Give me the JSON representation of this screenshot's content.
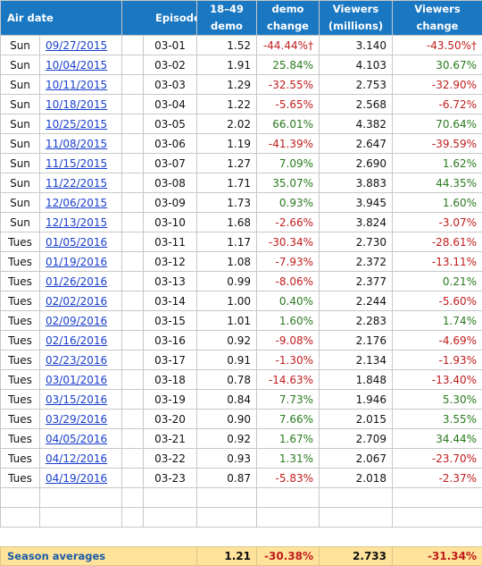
{
  "headers": {
    "air_date": "Air date",
    "episode": "Episode",
    "demo_line1": "18–49",
    "demo_line2": "demo",
    "demo_change_line1": "demo",
    "demo_change_line2": "change",
    "viewers_line1": "Viewers",
    "viewers_line2": "(millions)",
    "viewers_change_line1": "Viewers",
    "viewers_change_line2": "change"
  },
  "rows": [
    {
      "day": "Sun",
      "date": "09/27/2015",
      "episode": "03-01",
      "demo": "1.52",
      "demo_change": "-44.44%†",
      "viewers": "3.140",
      "viewers_change": "-43.50%†"
    },
    {
      "day": "Sun",
      "date": "10/04/2015",
      "episode": "03-02",
      "demo": "1.91",
      "demo_change": "25.84%",
      "viewers": "4.103",
      "viewers_change": "30.67%"
    },
    {
      "day": "Sun",
      "date": "10/11/2015",
      "episode": "03-03",
      "demo": "1.29",
      "demo_change": "-32.55%",
      "viewers": "2.753",
      "viewers_change": "-32.90%"
    },
    {
      "day": "Sun",
      "date": "10/18/2015",
      "episode": "03-04",
      "demo": "1.22",
      "demo_change": "-5.65%",
      "viewers": "2.568",
      "viewers_change": "-6.72%"
    },
    {
      "day": "Sun",
      "date": "10/25/2015",
      "episode": "03-05",
      "demo": "2.02",
      "demo_change": "66.01%",
      "viewers": "4.382",
      "viewers_change": "70.64%"
    },
    {
      "day": "Sun",
      "date": "11/08/2015",
      "episode": "03-06",
      "demo": "1.19",
      "demo_change": "-41.39%",
      "viewers": "2.647",
      "viewers_change": "-39.59%"
    },
    {
      "day": "Sun",
      "date": "11/15/2015",
      "episode": "03-07",
      "demo": "1.27",
      "demo_change": "7.09%",
      "viewers": "2.690",
      "viewers_change": "1.62%"
    },
    {
      "day": "Sun",
      "date": "11/22/2015",
      "episode": "03-08",
      "demo": "1.71",
      "demo_change": "35.07%",
      "viewers": "3.883",
      "viewers_change": "44.35%"
    },
    {
      "day": "Sun",
      "date": "12/06/2015",
      "episode": "03-09",
      "demo": "1.73",
      "demo_change": "0.93%",
      "viewers": "3.945",
      "viewers_change": "1.60%"
    },
    {
      "day": "Sun",
      "date": "12/13/2015",
      "episode": "03-10",
      "demo": "1.68",
      "demo_change": "-2.66%",
      "viewers": "3.824",
      "viewers_change": "-3.07%"
    },
    {
      "day": "Tues",
      "date": "01/05/2016",
      "episode": "03-11",
      "demo": "1.17",
      "demo_change": "-30.34%",
      "viewers": "2.730",
      "viewers_change": "-28.61%"
    },
    {
      "day": "Tues",
      "date": "01/19/2016",
      "episode": "03-12",
      "demo": "1.08",
      "demo_change": "-7.93%",
      "viewers": "2.372",
      "viewers_change": "-13.11%"
    },
    {
      "day": "Tues",
      "date": "01/26/2016",
      "episode": "03-13",
      "demo": "0.99",
      "demo_change": "-8.06%",
      "viewers": "2.377",
      "viewers_change": "0.21%"
    },
    {
      "day": "Tues",
      "date": "02/02/2016",
      "episode": "03-14",
      "demo": "1.00",
      "demo_change": "0.40%",
      "viewers": "2.244",
      "viewers_change": "-5.60%"
    },
    {
      "day": "Tues",
      "date": "02/09/2016",
      "episode": "03-15",
      "demo": "1.01",
      "demo_change": "1.60%",
      "viewers": "2.283",
      "viewers_change": "1.74%"
    },
    {
      "day": "Tues",
      "date": "02/16/2016",
      "episode": "03-16",
      "demo": "0.92",
      "demo_change": "-9.08%",
      "viewers": "2.176",
      "viewers_change": "-4.69%"
    },
    {
      "day": "Tues",
      "date": "02/23/2016",
      "episode": "03-17",
      "demo": "0.91",
      "demo_change": "-1.30%",
      "viewers": "2.134",
      "viewers_change": "-1.93%"
    },
    {
      "day": "Tues",
      "date": "03/01/2016",
      "episode": "03-18",
      "demo": "0.78",
      "demo_change": "-14.63%",
      "viewers": "1.848",
      "viewers_change": "-13.40%"
    },
    {
      "day": "Tues",
      "date": "03/15/2016",
      "episode": "03-19",
      "demo": "0.84",
      "demo_change": "7.73%",
      "viewers": "1.946",
      "viewers_change": "5.30%"
    },
    {
      "day": "Tues",
      "date": "03/29/2016",
      "episode": "03-20",
      "demo": "0.90",
      "demo_change": "7.66%",
      "viewers": "2.015",
      "viewers_change": "3.55%"
    },
    {
      "day": "Tues",
      "date": "04/05/2016",
      "episode": "03-21",
      "demo": "0.92",
      "demo_change": "1.67%",
      "viewers": "2.709",
      "viewers_change": "34.44%"
    },
    {
      "day": "Tues",
      "date": "04/12/2016",
      "episode": "03-22",
      "demo": "0.93",
      "demo_change": "1.31%",
      "viewers": "2.067",
      "viewers_change": "-23.70%"
    },
    {
      "day": "Tues",
      "date": "04/19/2016",
      "episode": "03-23",
      "demo": "0.87",
      "demo_change": "-5.83%",
      "viewers": "2.018",
      "viewers_change": "-2.37%"
    }
  ],
  "averages": {
    "label": "Season averages",
    "demo": "1.21",
    "demo_change": "-30.38%",
    "viewers": "2.733",
    "viewers_change": "-31.34%"
  },
  "colors": {
    "header_bg": "#1a78c2",
    "link": "#1a3fcc",
    "positive": "#2a7a1e",
    "negative": "#c11c1c",
    "averages_bg": "#ffe39a"
  }
}
